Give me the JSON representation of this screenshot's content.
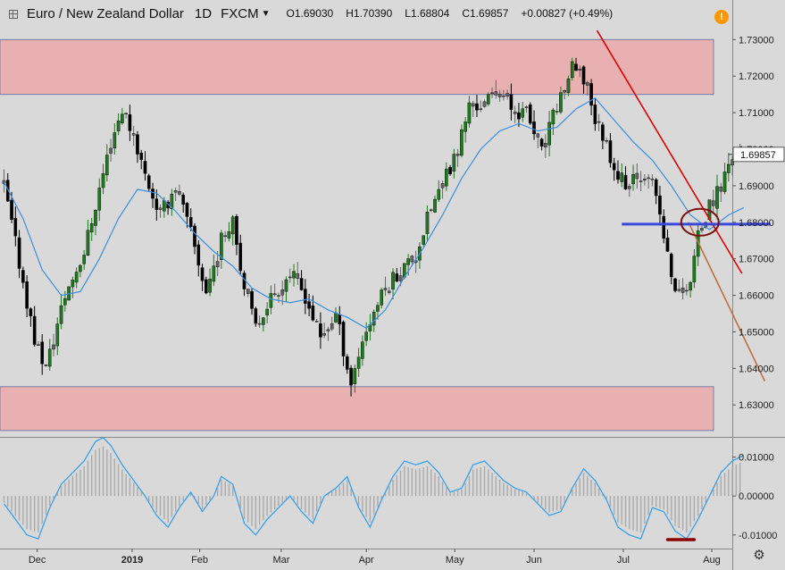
{
  "header": {
    "pair": "Euro / New Zealand Dollar",
    "timeframe": "1D",
    "source": "FXCM",
    "open": "O1.69030",
    "high": "H1.70390",
    "low": "L1.68804",
    "close": "C1.69857",
    "change": "+0.00827 (+0.49%)",
    "alert_label": "!"
  },
  "colors": {
    "background": "#d9d9d9",
    "bull_candle": "#1f7a1f",
    "bear_candle": "#000000",
    "neutral_candle": "#666666",
    "zone_fill": "#e8b0b0",
    "moving_average": "#3d8ee0",
    "trendline": "#e00000",
    "projection_line": "#c07040",
    "support_line": "#3a48d8",
    "circle_marker": "#7a1010",
    "osc_line": "#3aa0ea",
    "osc_hist": "#aaaaaa",
    "price_label_bg": "#ffffff"
  },
  "icons": {
    "expand": "expand-icon",
    "alert": "alert-icon",
    "dropdown": "chevron-down-icon",
    "settings": "gear-icon"
  },
  "chart_data": [
    {
      "type": "candlestick",
      "title": "Euro / New Zealand Dollar",
      "ylim": [
        1.6215,
        1.7335
      ],
      "y_ticks": [
        1.63,
        1.64,
        1.65,
        1.66,
        1.67,
        1.68,
        1.69,
        1.7,
        1.71,
        1.72,
        1.73
      ],
      "y_tick_labels": [
        "1.63000",
        "1.64000",
        "1.65000",
        "1.66000",
        "1.67000",
        "1.68000",
        "1.69000",
        "1.70000",
        "1.71000",
        "1.72000",
        "1.73000"
      ],
      "x_labels": [
        "Dec",
        "2019",
        "Feb",
        "Mar",
        "Apr",
        "May",
        "Jun",
        "Jul",
        "Aug"
      ],
      "x_label_positions": [
        8.7,
        33.6,
        51.3,
        72.7,
        95.0,
        118.2,
        139.0,
        162.4,
        185.6
      ],
      "n_slots": 196,
      "last_price_label": "1.69857",
      "last_price": 1.69857,
      "candle_keypoints": [
        [
          0,
          1.69
        ],
        [
          8,
          1.648
        ],
        [
          11,
          1.64
        ],
        [
          16,
          1.66
        ],
        [
          21,
          1.672
        ],
        [
          28,
          1.702
        ],
        [
          31,
          1.711
        ],
        [
          34,
          1.704
        ],
        [
          37,
          1.693
        ],
        [
          41,
          1.682
        ],
        [
          45,
          1.69
        ],
        [
          49,
          1.677
        ],
        [
          53,
          1.661
        ],
        [
          57,
          1.675
        ],
        [
          60,
          1.682
        ],
        [
          63,
          1.662
        ],
        [
          66,
          1.651
        ],
        [
          69,
          1.658
        ],
        [
          75,
          1.666
        ],
        [
          79,
          1.66
        ],
        [
          83,
          1.648
        ],
        [
          87,
          1.655
        ],
        [
          91,
          1.636
        ],
        [
          94,
          1.648
        ],
        [
          98,
          1.658
        ],
        [
          102,
          1.665
        ],
        [
          108,
          1.671
        ],
        [
          112,
          1.684
        ],
        [
          115,
          1.69
        ],
        [
          119,
          1.7
        ],
        [
          122,
          1.712
        ],
        [
          126,
          1.712
        ],
        [
          130,
          1.717
        ],
        [
          133,
          1.711
        ],
        [
          137,
          1.71
        ],
        [
          141,
          1.699
        ],
        [
          145,
          1.712
        ],
        [
          149,
          1.722
        ],
        [
          153,
          1.718
        ],
        [
          155,
          1.708
        ],
        [
          157,
          1.704
        ],
        [
          161,
          1.693
        ],
        [
          164,
          1.69
        ],
        [
          167,
          1.693
        ],
        [
          169,
          1.694
        ],
        [
          172,
          1.682
        ],
        [
          175,
          1.665
        ],
        [
          177,
          1.66
        ],
        [
          180,
          1.664
        ],
        [
          182,
          1.676
        ],
        [
          185,
          1.684
        ],
        [
          188,
          1.69
        ],
        [
          191,
          1.699
        ]
      ],
      "zones": [
        {
          "label": "resistance",
          "y_range": [
            1.715,
            1.73
          ]
        },
        {
          "label": "support",
          "y_range": [
            1.623,
            1.635
          ]
        }
      ],
      "moving_average_keypoints": [
        [
          0,
          1.691
        ],
        [
          5,
          1.681
        ],
        [
          10,
          1.667
        ],
        [
          15,
          1.66
        ],
        [
          20,
          1.661
        ],
        [
          25,
          1.67
        ],
        [
          30,
          1.681
        ],
        [
          35,
          1.689
        ],
        [
          40,
          1.688
        ],
        [
          45,
          1.683
        ],
        [
          50,
          1.677
        ],
        [
          55,
          1.672
        ],
        [
          60,
          1.668
        ],
        [
          65,
          1.662
        ],
        [
          70,
          1.659
        ],
        [
          75,
          1.658
        ],
        [
          80,
          1.659
        ],
        [
          85,
          1.656
        ],
        [
          90,
          1.654
        ],
        [
          95,
          1.651
        ],
        [
          100,
          1.656
        ],
        [
          105,
          1.665
        ],
        [
          110,
          1.673
        ],
        [
          115,
          1.682
        ],
        [
          120,
          1.692
        ],
        [
          125,
          1.7
        ],
        [
          130,
          1.705
        ],
        [
          135,
          1.707
        ],
        [
          140,
          1.705
        ],
        [
          145,
          1.706
        ],
        [
          150,
          1.711
        ],
        [
          155,
          1.714
        ],
        [
          160,
          1.708
        ],
        [
          165,
          1.702
        ],
        [
          170,
          1.697
        ],
        [
          175,
          1.69
        ],
        [
          180,
          1.682
        ],
        [
          185,
          1.678
        ],
        [
          190,
          1.682
        ],
        [
          194,
          1.684
        ]
      ],
      "trendline": {
        "from": [
          155.5,
          1.7325
        ],
        "to": [
          193.5,
          1.666
        ]
      },
      "projection_line": {
        "from": [
          179.5,
          1.68
        ],
        "to": [
          199.5,
          1.6365
        ]
      },
      "support_line": {
        "from": [
          162.0,
          1.6795
        ],
        "to": [
          201.0,
          1.6795
        ]
      },
      "circle_marker": {
        "center": [
          182.5,
          1.68
        ]
      }
    },
    {
      "type": "line",
      "series": [
        {
          "values": []
        }
      ],
      "ylim": [
        -0.0135,
        0.0145
      ],
      "y_ticks": [
        -0.01,
        0.0,
        0.01
      ],
      "y_tick_labels": [
        "-0.01000",
        "0.00000",
        "0.01000"
      ],
      "keypoints": [
        [
          0,
          -0.002
        ],
        [
          3,
          -0.006
        ],
        [
          6,
          -0.01
        ],
        [
          9,
          -0.011
        ],
        [
          12,
          -0.003
        ],
        [
          15,
          0.003
        ],
        [
          18,
          0.006
        ],
        [
          21,
          0.009
        ],
        [
          24,
          0.014
        ],
        [
          26,
          0.015
        ],
        [
          28,
          0.013
        ],
        [
          31,
          0.008
        ],
        [
          34,
          0.004
        ],
        [
          37,
          0.0
        ],
        [
          40,
          -0.005
        ],
        [
          43,
          -0.008
        ],
        [
          46,
          -0.003
        ],
        [
          49,
          0.001
        ],
        [
          52,
          -0.004
        ],
        [
          55,
          0.0
        ],
        [
          57,
          0.005
        ],
        [
          60,
          0.003
        ],
        [
          63,
          -0.007
        ],
        [
          66,
          -0.01
        ],
        [
          69,
          -0.006
        ],
        [
          72,
          -0.003
        ],
        [
          75,
          0.0
        ],
        [
          78,
          -0.004
        ],
        [
          81,
          -0.007
        ],
        [
          84,
          0.0
        ],
        [
          87,
          0.002
        ],
        [
          90,
          0.005
        ],
        [
          93,
          -0.003
        ],
        [
          96,
          -0.008
        ],
        [
          99,
          -0.001
        ],
        [
          102,
          0.005
        ],
        [
          105,
          0.009
        ],
        [
          108,
          0.008
        ],
        [
          111,
          0.009
        ],
        [
          114,
          0.006
        ],
        [
          117,
          0.001
        ],
        [
          120,
          0.002
        ],
        [
          123,
          0.008
        ],
        [
          126,
          0.009
        ],
        [
          128,
          0.007
        ],
        [
          131,
          0.004
        ],
        [
          134,
          0.002
        ],
        [
          137,
          0.001
        ],
        [
          140,
          -0.002
        ],
        [
          143,
          -0.005
        ],
        [
          146,
          -0.004
        ],
        [
          149,
          0.002
        ],
        [
          152,
          0.007
        ],
        [
          155,
          0.004
        ],
        [
          158,
          -0.001
        ],
        [
          161,
          -0.008
        ],
        [
          164,
          -0.01
        ],
        [
          167,
          -0.011
        ],
        [
          170,
          -0.003
        ],
        [
          173,
          -0.004
        ],
        [
          176,
          -0.009
        ],
        [
          179,
          -0.011
        ],
        [
          182,
          -0.006
        ],
        [
          185,
          0.0
        ],
        [
          188,
          0.006
        ],
        [
          191,
          0.009
        ],
        [
          194,
          0.0105
        ]
      ],
      "marker_bar": {
        "from_slot": 174,
        "to_slot": 181
      }
    }
  ]
}
